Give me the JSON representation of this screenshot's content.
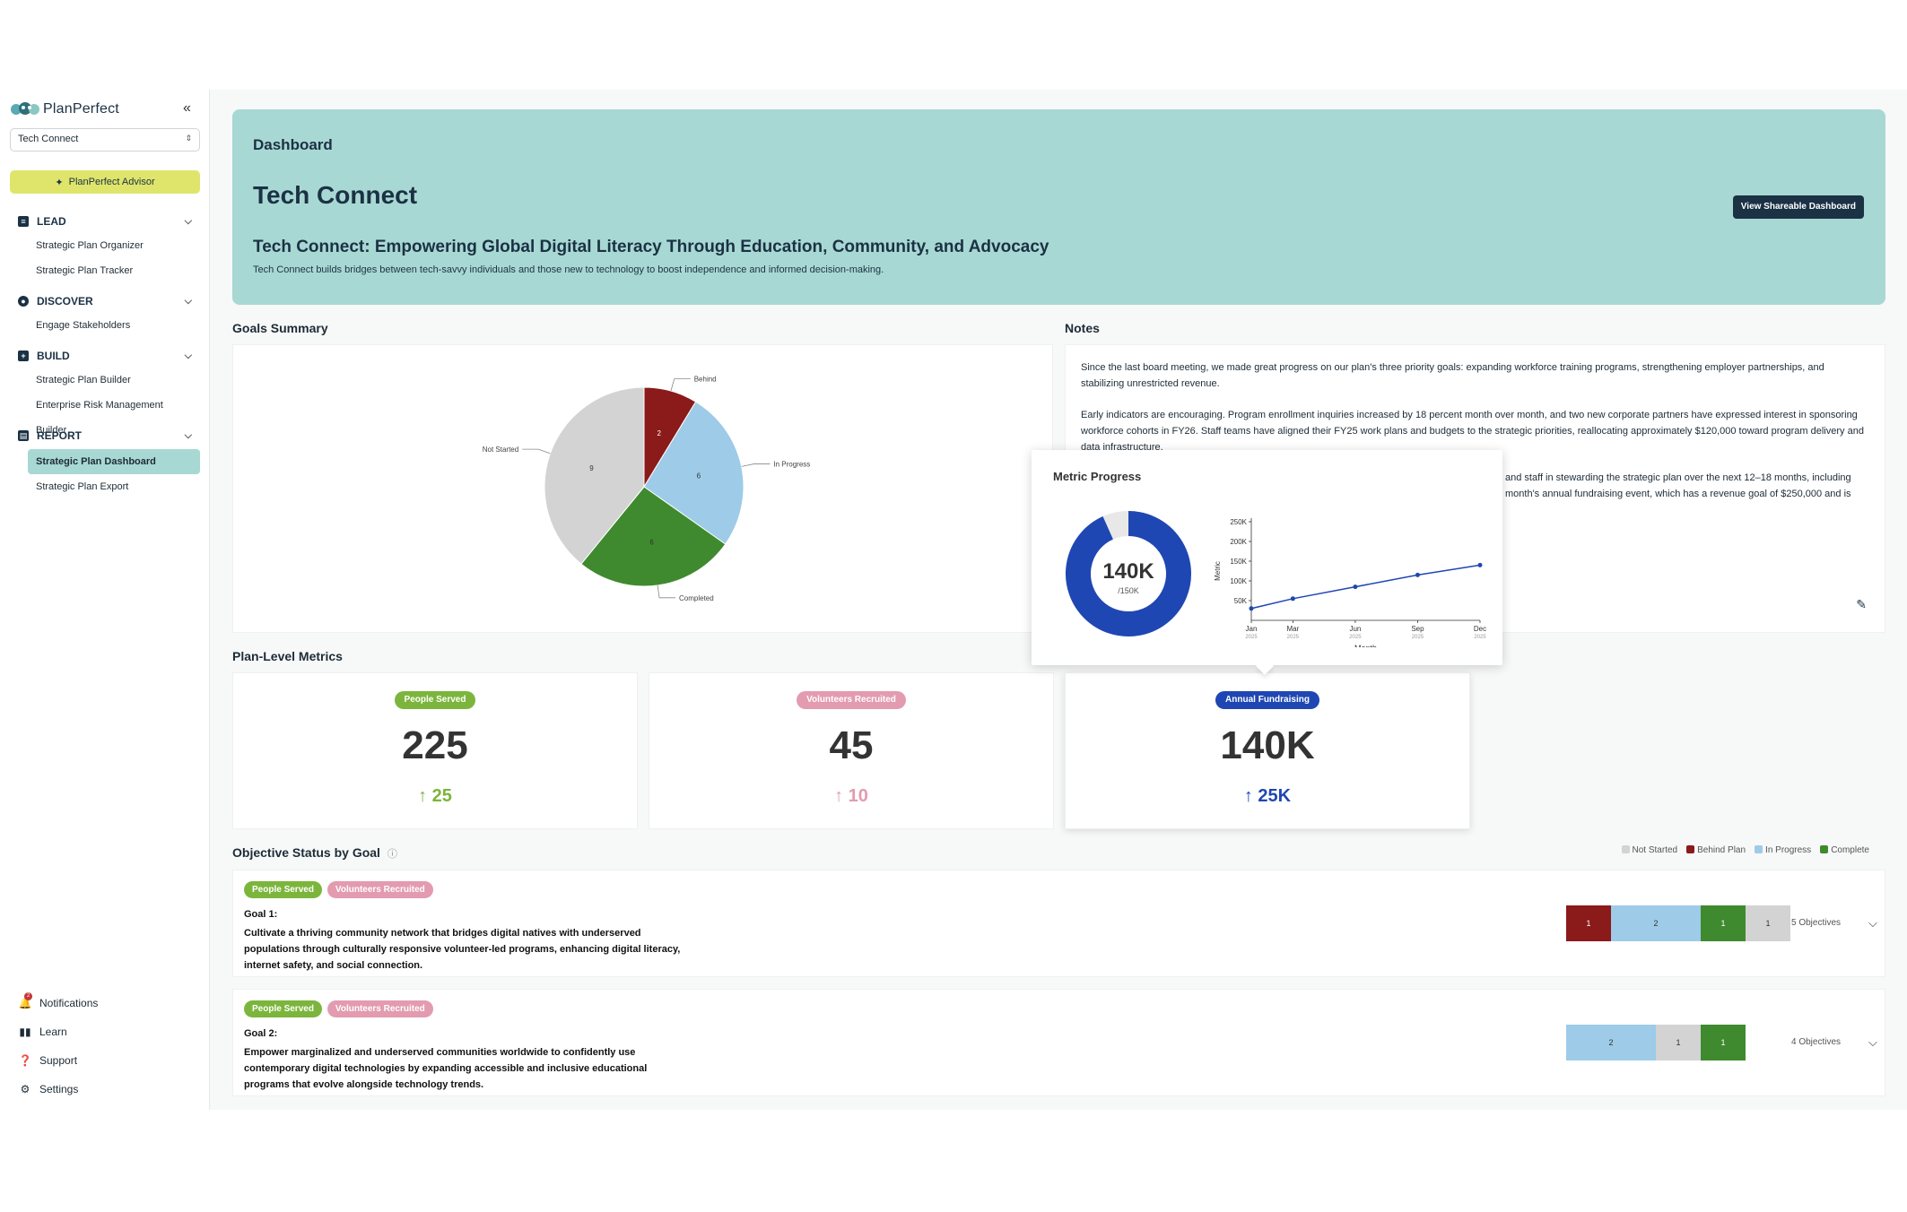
{
  "sidebar": {
    "logo": "PlanPerfect",
    "org_select": "Tech Connect",
    "advisor": "PlanPerfect Advisor",
    "sections": [
      {
        "label": "LEAD",
        "items": [
          "Strategic Plan Organizer",
          "Strategic Plan Tracker"
        ]
      },
      {
        "label": "DISCOVER",
        "items": [
          "Engage Stakeholders"
        ]
      },
      {
        "label": "BUILD",
        "items": [
          "Strategic Plan Builder",
          "Enterprise Risk Management Builder"
        ]
      },
      {
        "label": "REPORT",
        "items": [
          "Strategic Plan Dashboard",
          "Strategic Plan Export"
        ]
      }
    ],
    "bottom": {
      "notifications": "Notifications",
      "notifications_count": "2",
      "learn": "Learn",
      "support": "Support",
      "settings": "Settings"
    }
  },
  "hero": {
    "crumb": "Dashboard",
    "title": "Tech Connect",
    "subtitle": "Tech Connect: Empowering Global Digital Literacy Through Education, Community, and Advocacy",
    "description": "Tech Connect builds bridges between tech-savvy individuals and those new to technology to boost independence and informed decision-making.",
    "share_button": "View Shareable Dashboard"
  },
  "goals_summary": {
    "title": "Goals Summary"
  },
  "notes": {
    "title": "Notes",
    "p1": "Since the last board meeting, we made great progress on our plan's three priority goals: expanding workforce training programs, strengthening employer partnerships, and stabilizing unrestricted revenue.",
    "p2": "Early indicators are encouraging. Program enrollment inquiries increased by 18 percent month over month, and two new corporate partners have expressed interest in sponsoring workforce cohorts in FY26. Staff teams have aligned their FY25 work plans and budgets to the strategic priorities, reallocating approximately $120,000 toward program delivery and data infrastructure.",
    "p3_visible": "and staff in stewarding the strategic plan over the next 12–18 months, including",
    "p3b_visible": "month's annual fundraising event, which has a revenue goal of $250,000 and is"
  },
  "plan_metrics": {
    "title": "Plan-Level Metrics",
    "tiles": [
      {
        "label": "People Served",
        "value": "225",
        "delta": "25",
        "color": "#7cb53c"
      },
      {
        "label": "Volunteers Recruited",
        "value": "45",
        "delta": "10",
        "color": "#e39bb0"
      },
      {
        "label": "Annual Fundraising",
        "value": "140K",
        "delta": "25K",
        "color": "#1f47b3"
      }
    ]
  },
  "popover": {
    "title": "Metric Progress",
    "donut_value": "140K",
    "donut_target": "/150K",
    "y_axis_label": "Metric",
    "x_axis_label": "Month",
    "y_ticks": [
      "250K",
      "200K",
      "150K",
      "100K",
      "50K"
    ],
    "x_ticks": [
      {
        "m": "Jan",
        "y": "2025"
      },
      {
        "m": "Mar",
        "y": "2025"
      },
      {
        "m": "Jun",
        "y": "2025"
      },
      {
        "m": "Sep",
        "y": "2025"
      },
      {
        "m": "Dec",
        "y": "2025"
      }
    ]
  },
  "objectives": {
    "title": "Objective Status by Goal",
    "legend": {
      "not_started": "Not Started",
      "behind": "Behind Plan",
      "in_progress": "In Progress",
      "complete": "Complete"
    },
    "goals": [
      {
        "tags": [
          "People Served",
          "Volunteers Recruited"
        ],
        "name": "Goal 1:",
        "text": "Cultivate a thriving community network that bridges digital natives with underserved populations through culturally responsive volunteer-led programs, enhancing digital literacy, internet safety, and social connection.",
        "segments": [
          {
            "status": "behind",
            "count": "1"
          },
          {
            "status": "in_progress",
            "count": "2"
          },
          {
            "status": "complete",
            "count": "1"
          },
          {
            "status": "not_started",
            "count": "1"
          }
        ],
        "objectives": "5 Objectives"
      },
      {
        "tags": [
          "People Served",
          "Volunteers Recruited"
        ],
        "name": "Goal 2:",
        "text": "Empower marginalized and underserved communities worldwide to confidently use contemporary digital technologies by expanding accessible and inclusive educational programs that evolve alongside technology trends.",
        "segments": [
          {
            "status": "in_progress",
            "count": "2"
          },
          {
            "status": "not_started",
            "count": "1"
          },
          {
            "status": "complete",
            "count": "1"
          }
        ],
        "objectives": "4 Objectives"
      }
    ]
  },
  "colors": {
    "behind": "#8b1a1a",
    "in_progress": "#9dcbe8",
    "complete": "#3f8a2e",
    "not_started": "#d3d3d3",
    "navy": "#1b3144",
    "teal": "#a8d8d3",
    "fundraising_blue": "#1f47b3"
  },
  "chart_data": [
    {
      "type": "pie",
      "categories": [
        "Behind",
        "In Progress",
        "Completed",
        "Not Started"
      ],
      "values": [
        2,
        6,
        6,
        9
      ],
      "colors": [
        "#8b1a1a",
        "#9dcbe8",
        "#3f8a2e",
        "#d3d3d3"
      ]
    },
    {
      "type": "line",
      "x": [
        "Jan 2025",
        "Mar 2025",
        "Jun 2025",
        "Sep 2025",
        "Dec 2025"
      ],
      "series": [
        {
          "values": [
            30000,
            55000,
            85000,
            115000,
            140000
          ]
        }
      ],
      "ylim": [
        0,
        250000
      ],
      "xlabel": "Month",
      "ylabel": "Metric"
    },
    {
      "type": "pie",
      "values": [
        140000,
        10000
      ],
      "target": 150000
    }
  ]
}
